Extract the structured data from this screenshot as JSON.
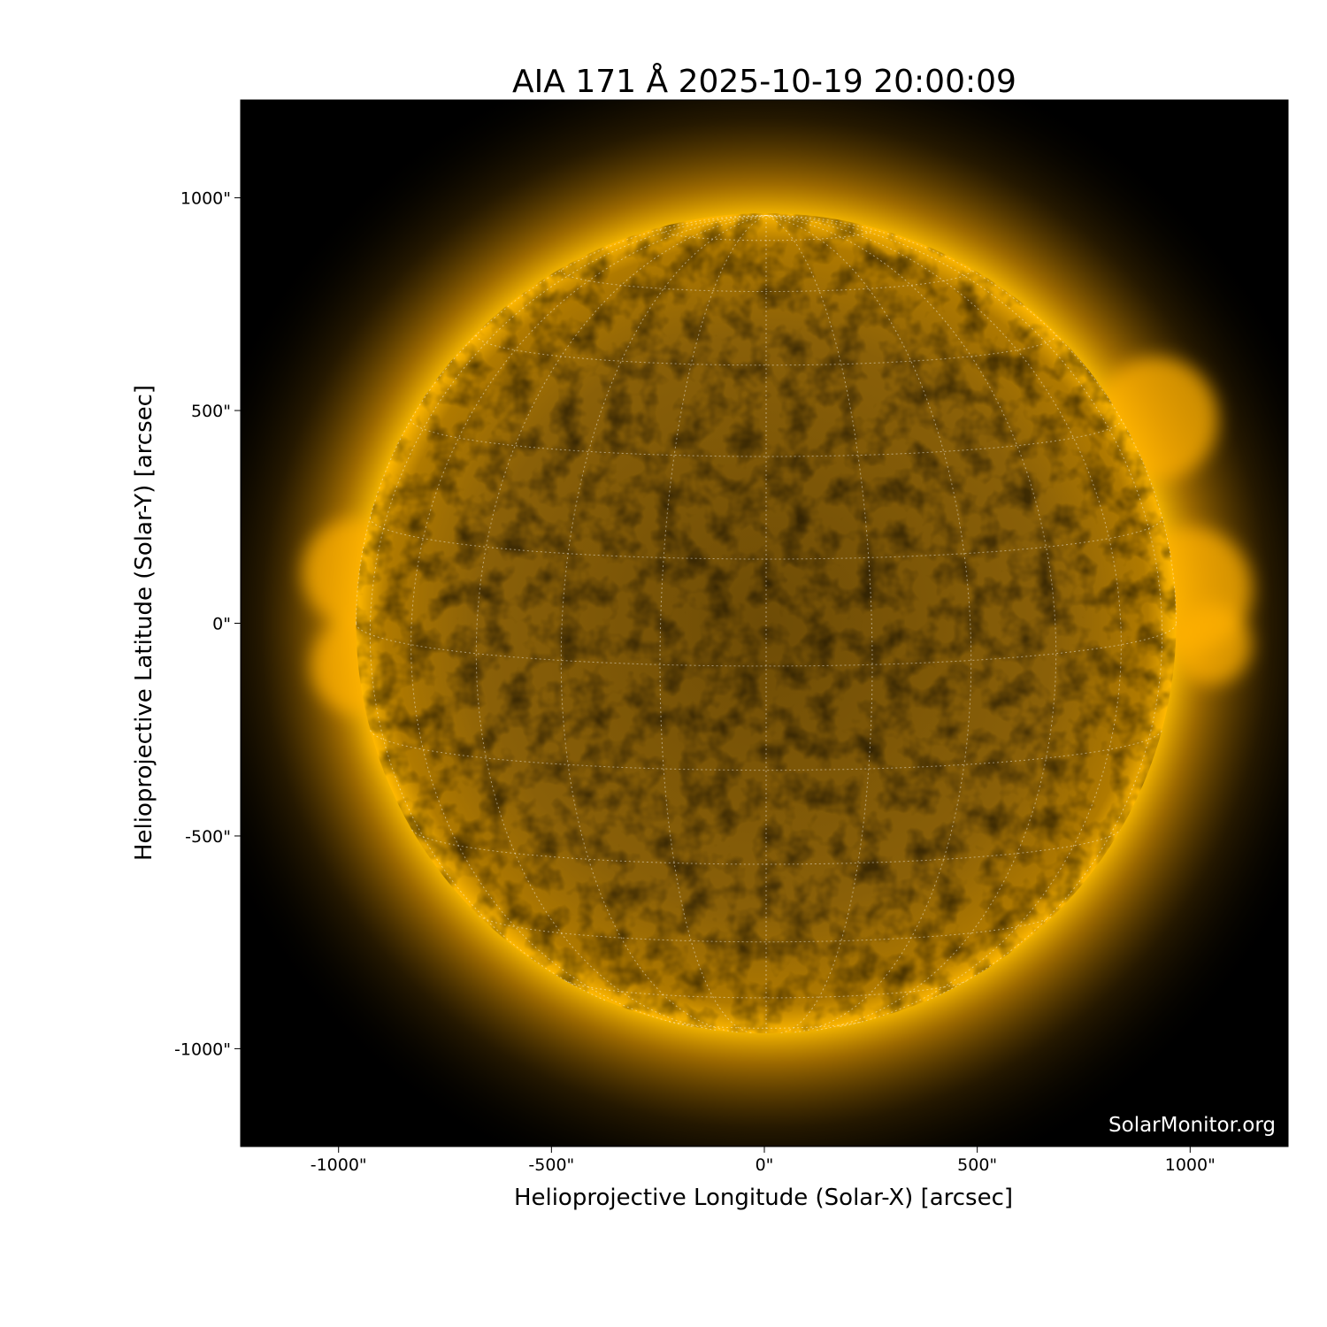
{
  "chart_data": {
    "type": "heatmap",
    "title": "AIA 171 Å 2025-10-19 20:00:09",
    "xlabel": "Helioprojective Longitude (Solar-X) [arcsec]",
    "ylabel": "Helioprojective Latitude (Solar-Y) [arcsec]",
    "xlim": [
      -1230,
      1230
    ],
    "ylim": [
      -1230,
      1230
    ],
    "xticks": [
      -1000,
      -500,
      0,
      500,
      1000
    ],
    "yticks": [
      -1000,
      -500,
      0,
      500,
      1000
    ],
    "xtick_labels": [
      "-1000\"",
      "-500\"",
      "0\"",
      "500\"",
      "1000\""
    ],
    "ytick_labels": [
      "-1000\"",
      "-500\"",
      "0\"",
      "500\"",
      "1000\""
    ],
    "solar_radius_arcsec": 963,
    "grid": "heliographic lon/lat dotted overlay",
    "colormap": [
      "#000000",
      "#6b4a00",
      "#d99400",
      "#ffc000",
      "#fff0a0"
    ],
    "watermark": "SolarMonitor.org"
  }
}
